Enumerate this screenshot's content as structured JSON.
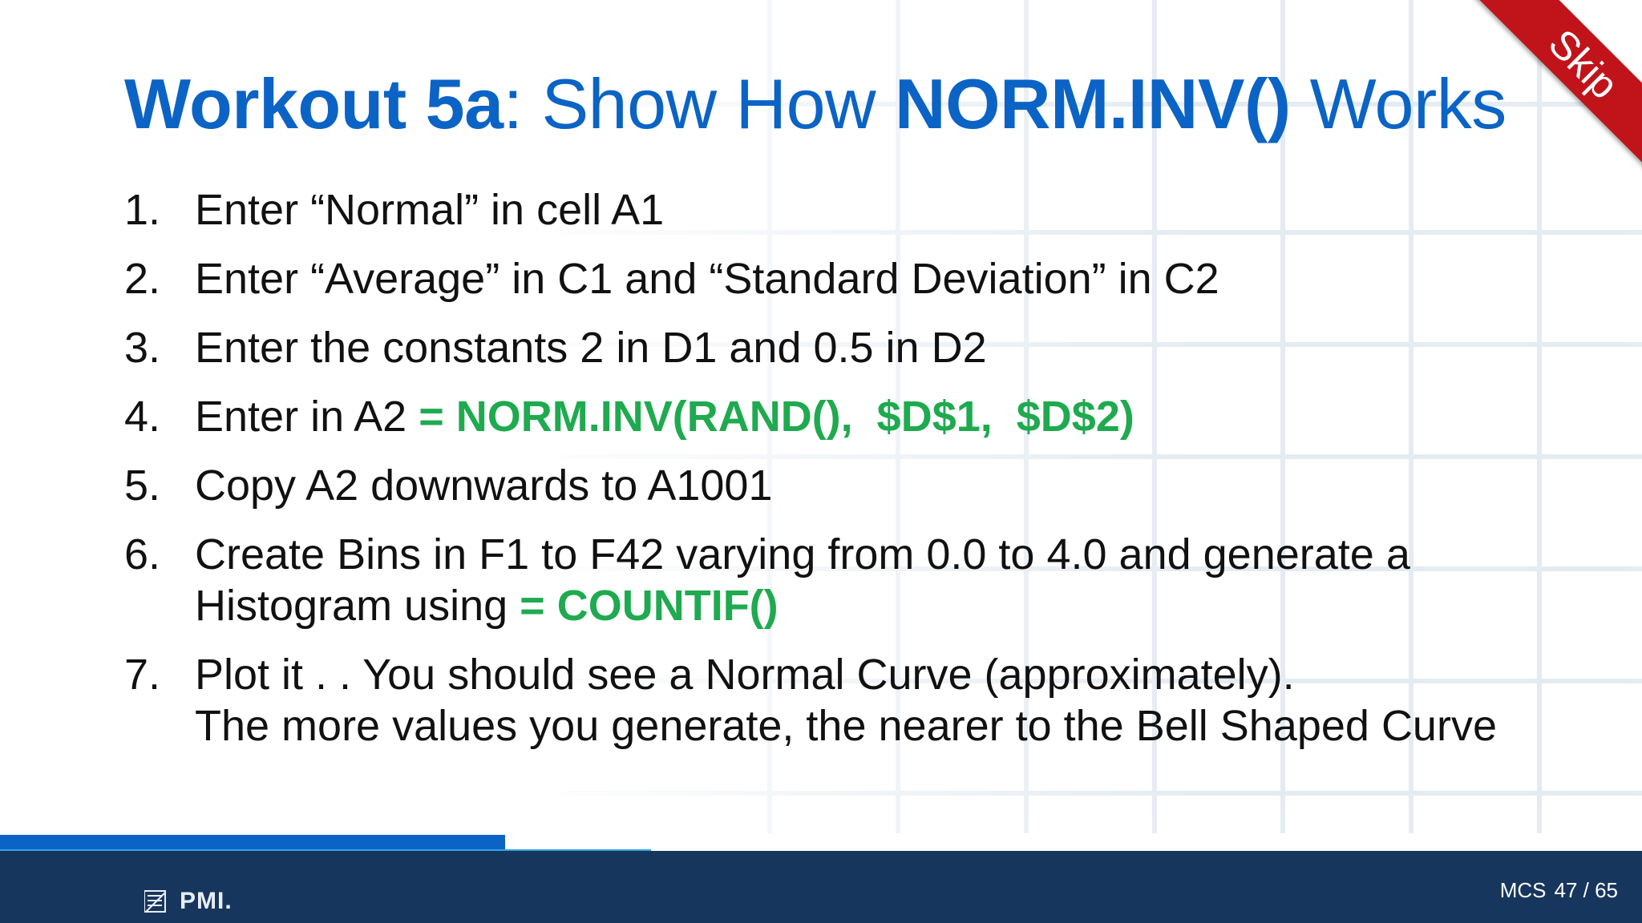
{
  "slide": {
    "title": {
      "part1": "Workout 5a",
      "part2": ": Show How ",
      "part3": "NORM.INV()",
      "part4": " Works"
    },
    "steps": [
      {
        "num": "1.",
        "lines": [
          {
            "text": "Enter “Normal” in cell A1"
          }
        ]
      },
      {
        "num": "2.",
        "lines": [
          {
            "text": "Enter “Average” in C1 and “Standard Deviation” in C2"
          }
        ]
      },
      {
        "num": "3.",
        "lines": [
          {
            "text": "Enter the constants 2 in D1 and 0.5 in D2"
          }
        ]
      },
      {
        "num": "4.",
        "lines": [
          {
            "text": "Enter in A2 ",
            "formula": "= NORM.INV(RAND(),  $D$1,  $D$2)"
          }
        ]
      },
      {
        "num": "5.",
        "lines": [
          {
            "text": "Copy A2 downwards to A1001"
          }
        ]
      },
      {
        "num": "6.",
        "lines": [
          {
            "text": "Create Bins in F1 to F42 varying from 0.0 to 4.0 and generate a"
          },
          {
            "text": "Histogram using ",
            "formula": "= COUNTIF()"
          }
        ]
      },
      {
        "num": "7.",
        "lines": [
          {
            "text": "Plot it . . You should see a Normal Curve (approximately)."
          },
          {
            "text": "The more values you generate, the nearer to the Bell Shaped Curve"
          }
        ]
      }
    ]
  },
  "skip_ribbon": {
    "label": "Skip",
    "color": "#c0141a"
  },
  "footer": {
    "logo_text": "PMI.",
    "course": "MCS",
    "page": "47 / 65"
  },
  "colors": {
    "title": "#0b63c5",
    "formula": "#1faa4f",
    "footer_bg": "#17365d",
    "stripe_dark": "#0b63c5",
    "stripe_light": "#2ea6e6"
  }
}
